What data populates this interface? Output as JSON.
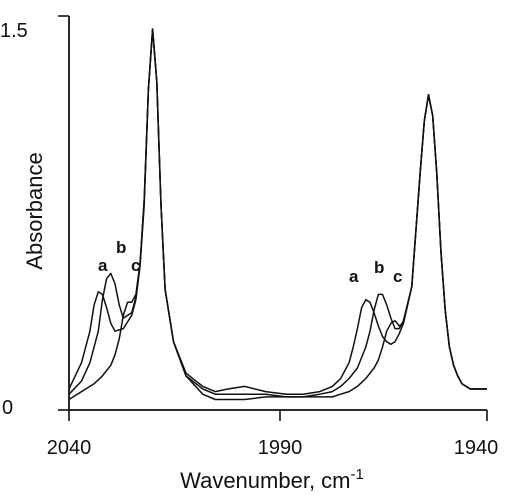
{
  "chart_data": {
    "type": "line",
    "xlabel": "Wavenumber, cm",
    "xlabel_superscript": "-1",
    "ylabel": "Absorbance",
    "x_reversed": true,
    "xlim": [
      2040,
      1940
    ],
    "ylim": [
      0,
      1.5
    ],
    "x_tick_labels": [
      "2040",
      "1990",
      "1940"
    ],
    "y_tick_labels": [
      "1.5",
      "0"
    ],
    "grid": false,
    "curve_labels": [
      "a",
      "b",
      "c",
      "a",
      "b",
      "c"
    ],
    "series": [
      {
        "name": "a",
        "x": [
          2040,
          2037,
          2035,
          2034,
          2033,
          2032,
          2031,
          2030,
          2029,
          2027,
          2025,
          2024,
          2023,
          2022,
          2021,
          2020,
          2019,
          2018,
          2017,
          2015,
          2012,
          2008,
          2005,
          2002,
          1998,
          1993,
          1988,
          1984,
          1980,
          1977,
          1975,
          1973,
          1972,
          1971,
          1970,
          1969,
          1968,
          1967,
          1966,
          1965,
          1964,
          1963,
          1962,
          1961,
          1960,
          1958,
          1956,
          1955,
          1954,
          1953,
          1952,
          1951,
          1950,
          1949,
          1948,
          1947,
          1946,
          1944,
          1942,
          1940
        ],
        "y": [
          0.08,
          0.18,
          0.3,
          0.4,
          0.45,
          0.44,
          0.39,
          0.33,
          0.3,
          0.31,
          0.36,
          0.42,
          0.55,
          0.78,
          1.22,
          1.45,
          1.25,
          0.78,
          0.46,
          0.26,
          0.14,
          0.09,
          0.07,
          0.08,
          0.09,
          0.07,
          0.06,
          0.06,
          0.07,
          0.09,
          0.12,
          0.18,
          0.24,
          0.31,
          0.39,
          0.42,
          0.41,
          0.37,
          0.32,
          0.28,
          0.26,
          0.25,
          0.26,
          0.29,
          0.33,
          0.47,
          0.9,
          1.1,
          1.2,
          1.12,
          0.9,
          0.6,
          0.38,
          0.24,
          0.17,
          0.13,
          0.1,
          0.08,
          0.08,
          0.08
        ]
      },
      {
        "name": "b",
        "x": [
          2040,
          2037,
          2035,
          2033,
          2032,
          2031,
          2030,
          2029,
          2028,
          2027,
          2025,
          2024,
          2023,
          2022,
          2021,
          2020,
          2019,
          2018,
          2017,
          2015,
          2012,
          2008,
          2005,
          2002,
          1998,
          1993,
          1988,
          1984,
          1980,
          1977,
          1975,
          1973,
          1971,
          1969,
          1968,
          1967,
          1966,
          1965,
          1964,
          1963,
          1962,
          1961,
          1960,
          1958,
          1956,
          1955,
          1954,
          1953,
          1952,
          1951,
          1950,
          1949,
          1948,
          1947,
          1946,
          1944,
          1942,
          1940
        ],
        "y": [
          0.06,
          0.11,
          0.18,
          0.3,
          0.42,
          0.5,
          0.52,
          0.48,
          0.4,
          0.35,
          0.37,
          0.43,
          0.56,
          0.8,
          1.22,
          1.45,
          1.25,
          0.78,
          0.46,
          0.26,
          0.13,
          0.08,
          0.06,
          0.06,
          0.06,
          0.06,
          0.05,
          0.05,
          0.06,
          0.07,
          0.09,
          0.12,
          0.16,
          0.24,
          0.3,
          0.38,
          0.44,
          0.44,
          0.4,
          0.35,
          0.31,
          0.31,
          0.34,
          0.47,
          0.9,
          1.1,
          1.2,
          1.12,
          0.9,
          0.6,
          0.38,
          0.24,
          0.17,
          0.13,
          0.1,
          0.08,
          0.08,
          0.08
        ]
      },
      {
        "name": "c",
        "x": [
          2040,
          2037,
          2034,
          2032,
          2030,
          2029,
          2028,
          2027,
          2026,
          2025,
          2024,
          2023,
          2022,
          2021,
          2020,
          2019,
          2018,
          2017,
          2015,
          2012,
          2008,
          2005,
          2002,
          1998,
          1993,
          1988,
          1984,
          1980,
          1977,
          1975,
          1973,
          1971,
          1969,
          1967,
          1966,
          1965,
          1964,
          1963,
          1962,
          1961,
          1960,
          1958,
          1956,
          1955,
          1954,
          1953,
          1952,
          1951,
          1950,
          1949,
          1948,
          1947,
          1946,
          1944,
          1942,
          1940
        ],
        "y": [
          0.04,
          0.07,
          0.1,
          0.13,
          0.17,
          0.21,
          0.27,
          0.36,
          0.41,
          0.41,
          0.44,
          0.56,
          0.8,
          1.22,
          1.45,
          1.25,
          0.78,
          0.46,
          0.26,
          0.13,
          0.06,
          0.04,
          0.04,
          0.04,
          0.05,
          0.05,
          0.05,
          0.05,
          0.05,
          0.06,
          0.07,
          0.09,
          0.12,
          0.16,
          0.19,
          0.24,
          0.3,
          0.33,
          0.34,
          0.32,
          0.33,
          0.47,
          0.9,
          1.1,
          1.2,
          1.12,
          0.9,
          0.6,
          0.38,
          0.24,
          0.17,
          0.13,
          0.1,
          0.08,
          0.08,
          0.08
        ]
      }
    ]
  }
}
